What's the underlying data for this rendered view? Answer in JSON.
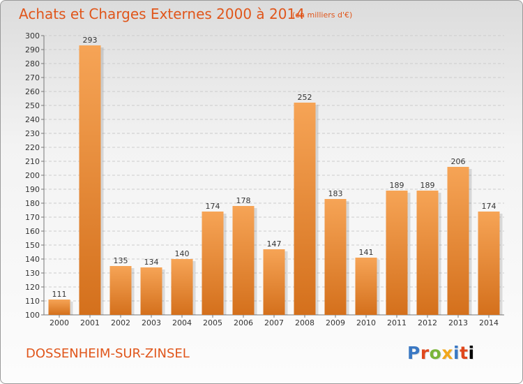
{
  "header": {
    "title": "Achats et Charges Externes 2000 à 2014",
    "subtitle": "(en milliers d'€)"
  },
  "footer": {
    "commune": "DOSSENHEIM-SUR-ZINSEL",
    "logo_text": "Proxiti"
  },
  "colors": {
    "accent": "#e0561b",
    "bar_light": "#f6a456",
    "bar_dark": "#d4701c",
    "grid": "#cccccc"
  },
  "chart_data": {
    "type": "bar",
    "categories": [
      "2000",
      "2001",
      "2002",
      "2003",
      "2004",
      "2005",
      "2006",
      "2007",
      "2008",
      "2009",
      "2010",
      "2011",
      "2012",
      "2013",
      "2014"
    ],
    "values": [
      111,
      293,
      135,
      134,
      140,
      174,
      178,
      147,
      252,
      183,
      141,
      189,
      189,
      206,
      174
    ],
    "title": "Achats et Charges Externes 2000 à 2014",
    "xlabel": "",
    "ylabel": "",
    "ylim": [
      100,
      300
    ],
    "yticks": [
      100,
      110,
      120,
      130,
      140,
      150,
      160,
      170,
      180,
      190,
      200,
      210,
      220,
      230,
      240,
      250,
      260,
      270,
      280,
      290,
      300
    ],
    "grid": true,
    "data_labels": true
  }
}
